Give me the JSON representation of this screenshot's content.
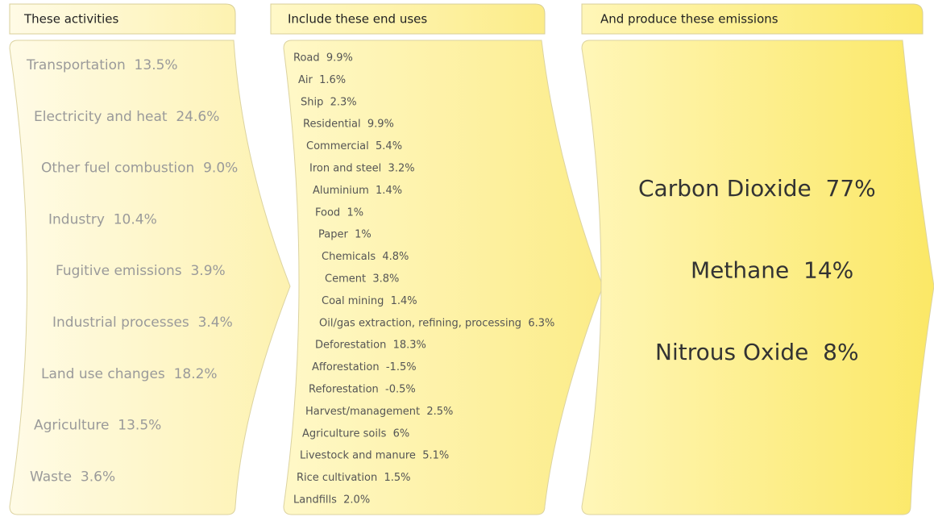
{
  "columns": [
    {
      "header": "These activities",
      "items": [
        "Transportation  13.5%",
        "Electricity and heat  24.6%",
        "Other fuel combustion  9.0%",
        "Industry  10.4%",
        "Fugitive emissions  3.9%",
        "Industrial processes  3.4%",
        "Land use changes  18.2%",
        "Agriculture  13.5%",
        "Waste  3.6%"
      ]
    },
    {
      "header": "Include these end uses",
      "items": [
        "Road  9.9%",
        "Air  1.6%",
        "Ship  2.3%",
        "Residential  9.9%",
        "Commercial  5.4%",
        "Iron and steel  3.2%",
        "Aluminium  1.4%",
        "Food  1%",
        "Paper  1%",
        "Chemicals  4.8%",
        "Cement  3.8%",
        "Coal mining  1.4%",
        "Oil/gas extraction, refining, processing  6.3%",
        "Deforestation  18.3%",
        "Afforestation  -1.5%",
        "Reforestation  -0.5%",
        "Harvest/management  2.5%",
        "Agriculture soils  6%",
        "Livestock and manure  5.1%",
        "Rice cultivation  1.5%",
        "Landfills  2.0%"
      ]
    },
    {
      "header": "And produce these emissions",
      "items": [
        "Carbon Dioxide  77%",
        "Methane  14%",
        "Nitrous Oxide  8%"
      ]
    }
  ]
}
